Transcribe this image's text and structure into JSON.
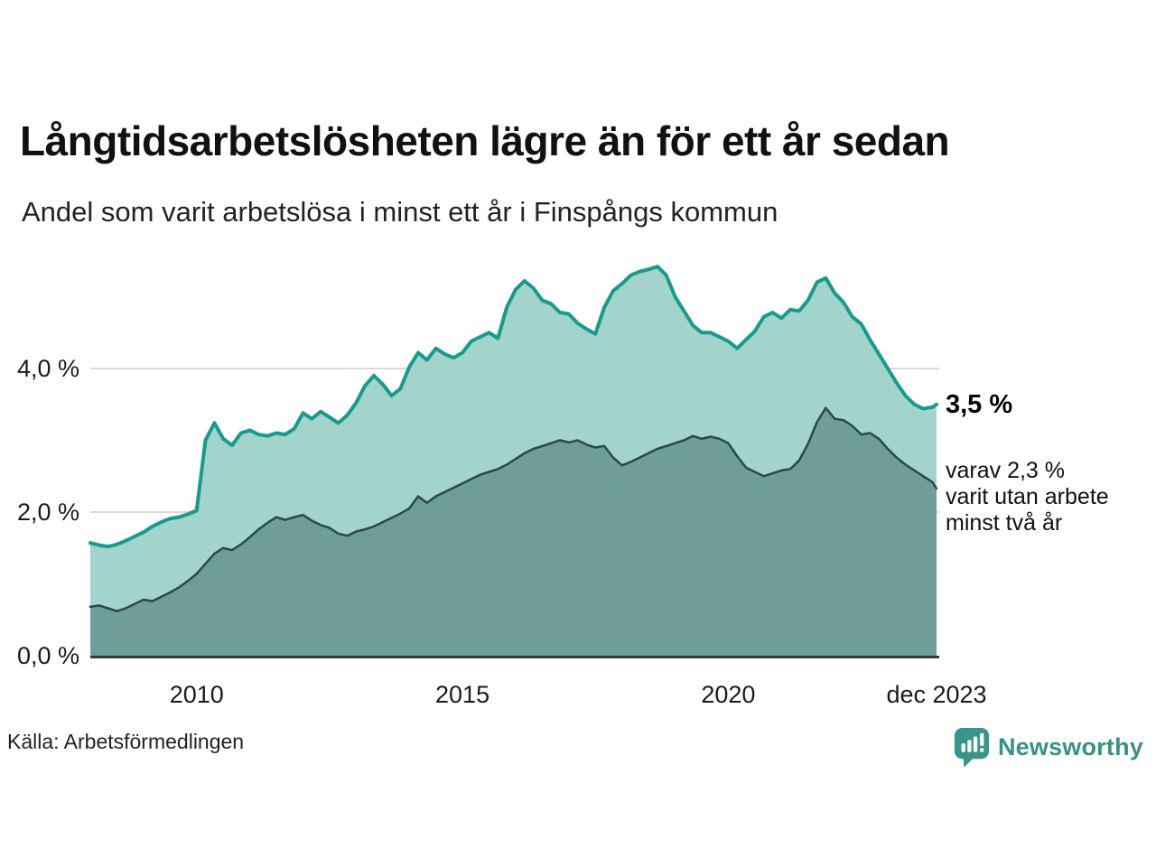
{
  "header": {
    "title": "Långtidsarbetslösheten lägre än för ett år sedan",
    "subtitle": "Andel som varit arbetslösa i minst ett år i Finspångs kommun"
  },
  "footer": {
    "source": "Källa: Arbetsförmedlingen",
    "brand": "Newsworthy"
  },
  "annotations": {
    "primary": "3,5 %",
    "secondary_lines": [
      "varav 2,3 %",
      "varit utan arbete",
      "minst två år"
    ]
  },
  "colors": {
    "accent_line": "#189a8d",
    "accent_fill": "#a2d4cc",
    "dark_line": "#2d4846",
    "dark_fill": "#6f9e97",
    "grid": "#d9d9d9",
    "baseline": "#2f3a39",
    "logo": "#3a948b",
    "text": "#1a1a1a"
  },
  "chart_data": {
    "type": "area",
    "title": "Långtidsarbetslösheten lägre än för ett år sedan",
    "subtitle": "Andel som varit arbetslösa i minst ett år i Finspångs kommun",
    "xlabel": "",
    "ylabel": "",
    "x_unit": "year",
    "x_start": 2008.0,
    "x_step_years": 0.1666667,
    "x_end": 2023.917,
    "ylim": [
      0,
      5.6
    ],
    "grid": "horizontal",
    "y_ticks": [
      {
        "value": 0,
        "label": "0,0 %"
      },
      {
        "value": 2,
        "label": "2,0 %"
      },
      {
        "value": 4,
        "label": "4,0 %"
      }
    ],
    "x_ticks": [
      {
        "value": 2010,
        "label": "2010"
      },
      {
        "value": 2015,
        "label": "2015"
      },
      {
        "value": 2020,
        "label": "2020"
      },
      {
        "value": 2023.917,
        "label": "dec 2023"
      }
    ],
    "series": [
      {
        "name": "Arbetslösa minst ett år",
        "end_value_label": "3,5 %",
        "line_color": "#189a8d",
        "fill_color": "#a2d4cc",
        "line_width": 4,
        "values": [
          1.57,
          1.54,
          1.52,
          1.55,
          1.6,
          1.66,
          1.72,
          1.8,
          1.86,
          1.91,
          1.93,
          1.97,
          2.02,
          3.0,
          3.24,
          3.02,
          2.93,
          3.1,
          3.14,
          3.08,
          3.06,
          3.1,
          3.08,
          3.16,
          3.38,
          3.3,
          3.4,
          3.32,
          3.24,
          3.35,
          3.52,
          3.76,
          3.9,
          3.78,
          3.62,
          3.72,
          4.02,
          4.22,
          4.12,
          4.28,
          4.2,
          4.15,
          4.22,
          4.38,
          4.44,
          4.5,
          4.42,
          4.85,
          5.1,
          5.22,
          5.12,
          4.95,
          4.9,
          4.78,
          4.76,
          4.63,
          4.55,
          4.48,
          4.85,
          5.08,
          5.18,
          5.3,
          5.35,
          5.38,
          5.42,
          5.3,
          5.0,
          4.8,
          4.6,
          4.5,
          4.5,
          4.44,
          4.38,
          4.28,
          4.4,
          4.52,
          4.72,
          4.78,
          4.7,
          4.82,
          4.8,
          4.95,
          5.2,
          5.26,
          5.05,
          4.92,
          4.72,
          4.62,
          4.4,
          4.2,
          4.0,
          3.8,
          3.62,
          3.5,
          3.44,
          3.46,
          3.5
        ]
      },
      {
        "name": "Varav utan arbete minst två år",
        "end_value_label": "varav 2,3 %",
        "line_color": "#2d4846",
        "fill_color": "#6f9e97",
        "line_width": 2.5,
        "values": [
          0.68,
          0.7,
          0.66,
          0.62,
          0.66,
          0.72,
          0.78,
          0.76,
          0.82,
          0.88,
          0.95,
          1.04,
          1.14,
          1.28,
          1.42,
          1.5,
          1.47,
          1.55,
          1.65,
          1.76,
          1.85,
          1.93,
          1.89,
          1.93,
          1.96,
          1.88,
          1.82,
          1.78,
          1.7,
          1.67,
          1.73,
          1.76,
          1.8,
          1.86,
          1.92,
          1.98,
          2.05,
          2.22,
          2.13,
          2.22,
          2.28,
          2.34,
          2.4,
          2.46,
          2.52,
          2.56,
          2.6,
          2.66,
          2.74,
          2.82,
          2.88,
          2.92,
          2.96,
          3.0,
          2.97,
          3.0,
          2.94,
          2.9,
          2.92,
          2.76,
          2.65,
          2.7,
          2.76,
          2.82,
          2.88,
          2.92,
          2.96,
          3.0,
          3.06,
          3.02,
          3.05,
          3.02,
          2.96,
          2.78,
          2.62,
          2.56,
          2.5,
          2.54,
          2.58,
          2.6,
          2.72,
          2.95,
          3.25,
          3.45,
          3.3,
          3.28,
          3.2,
          3.08,
          3.1,
          3.02,
          2.88,
          2.76,
          2.66,
          2.58,
          2.5,
          2.42,
          2.33
        ]
      }
    ]
  }
}
